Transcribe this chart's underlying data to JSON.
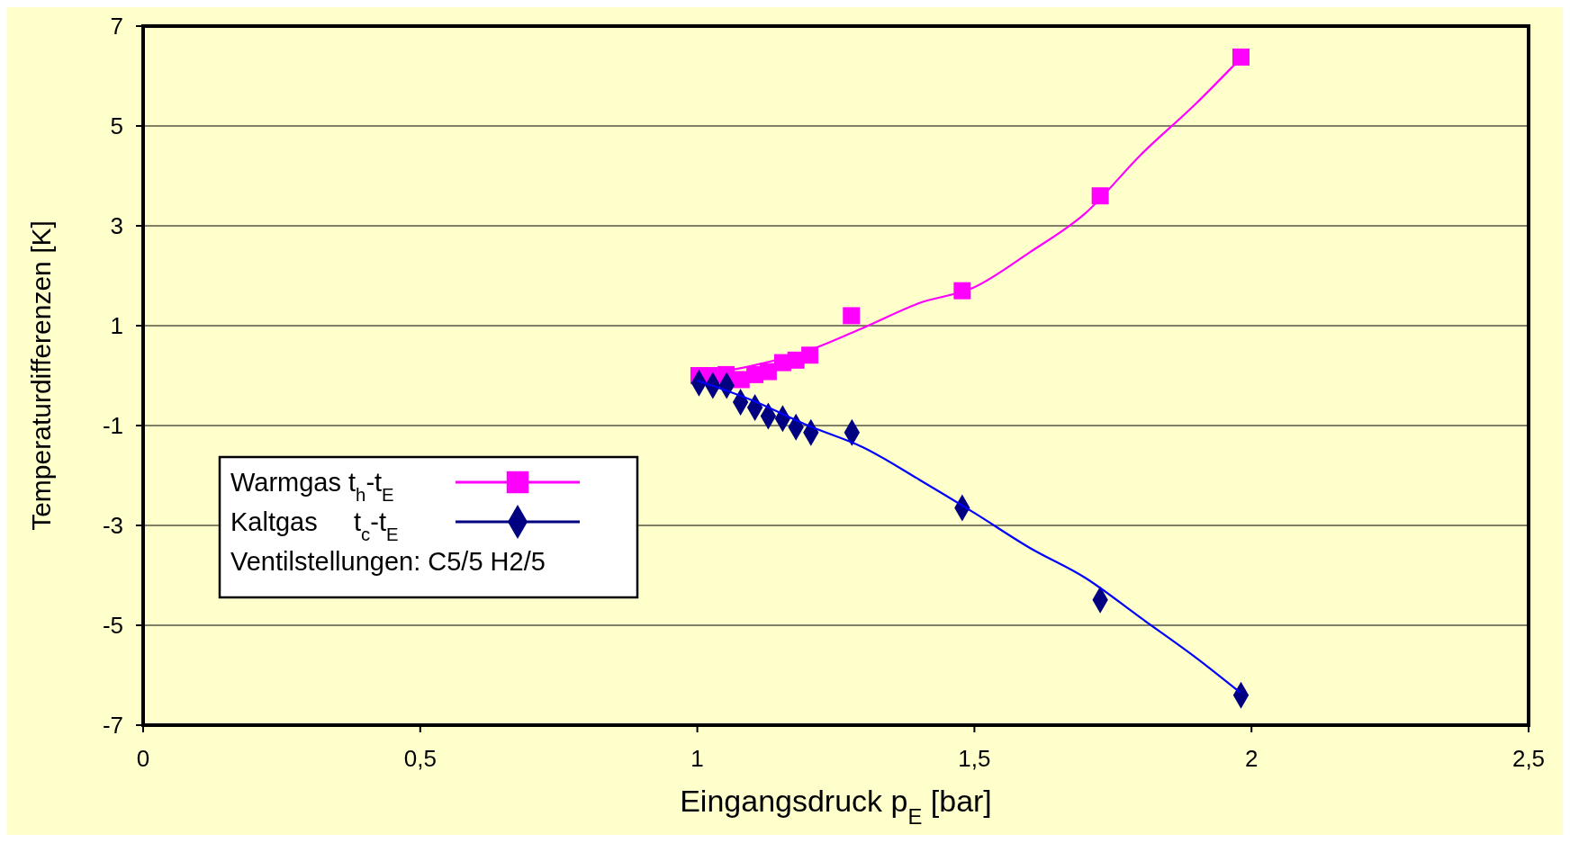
{
  "chart_data": {
    "type": "scatter",
    "xlabel": "Eingangsdruck p$_{E}$ [bar]",
    "ylabel": "Temperaturdifferenzen [K]",
    "xlim": [
      0,
      2.5
    ],
    "xticks": [
      0,
      {
        "value": 0.5,
        "label": "0,5"
      },
      1,
      {
        "value": 1.5,
        "label": "1,5"
      },
      2,
      {
        "value": 2.5,
        "label": "2,5"
      }
    ],
    "ylim": [
      -7,
      7
    ],
    "yticks": [
      -7,
      -5,
      -3,
      -1,
      1,
      3,
      5,
      7
    ],
    "grid": "y",
    "legend": "left",
    "annotations": [
      "Ventilstellungen: C5/5  H2/5"
    ],
    "series": [
      {
        "type": "line",
        "color": "#ff00ff",
        "marker": "none",
        "x": [
          1.0,
          1.1,
          1.2,
          1.3,
          1.4,
          1.5,
          1.6,
          1.7,
          1.8,
          1.9,
          1.98
        ],
        "values": [
          0,
          0.2,
          0.5,
          0.96,
          1.45,
          1.77,
          2.47,
          3.25,
          4.42,
          5.45,
          6.35
        ]
      },
      {
        "name": "Warmgas t$_{h}$-t$_{E}$",
        "color": "#ff00ff",
        "marker": "square",
        "x": [
          1.003,
          1.022,
          1.052,
          1.079,
          1.104,
          1.128,
          1.154,
          1.178,
          1.203,
          1.278,
          1.478,
          1.727,
          1.981
        ],
        "values": [
          0,
          0,
          0.02,
          -0.08,
          0.02,
          0.08,
          0.26,
          0.31,
          0.41,
          1.2,
          1.7,
          3.6,
          6.38
        ]
      },
      {
        "name": "Kaltgas     t$_{c}$-t$_{E}$",
        "color": "#000080",
        "marker": "diamond",
        "x": [
          1.003,
          1.028,
          1.053,
          1.078,
          1.104,
          1.128,
          1.154,
          1.178,
          1.205,
          1.279,
          1.478,
          1.727,
          1.981
        ],
        "values": [
          -0.15,
          -0.2,
          -0.2,
          -0.53,
          -0.64,
          -0.81,
          -0.86,
          -1.03,
          -1.14,
          -1.14,
          -2.65,
          -4.49,
          -6.4
        ]
      },
      {
        "type": "line",
        "color": "#0000ff",
        "marker": "none",
        "x": [
          1.0,
          1.1,
          1.2,
          1.3,
          1.4,
          1.5,
          1.6,
          1.7,
          1.8,
          1.9,
          1.98
        ],
        "values": [
          -0.1,
          -0.5,
          -1.0,
          -1.44,
          -2.08,
          -2.75,
          -3.45,
          -4.05,
          -4.85,
          -5.65,
          -6.35
        ]
      }
    ]
  }
}
